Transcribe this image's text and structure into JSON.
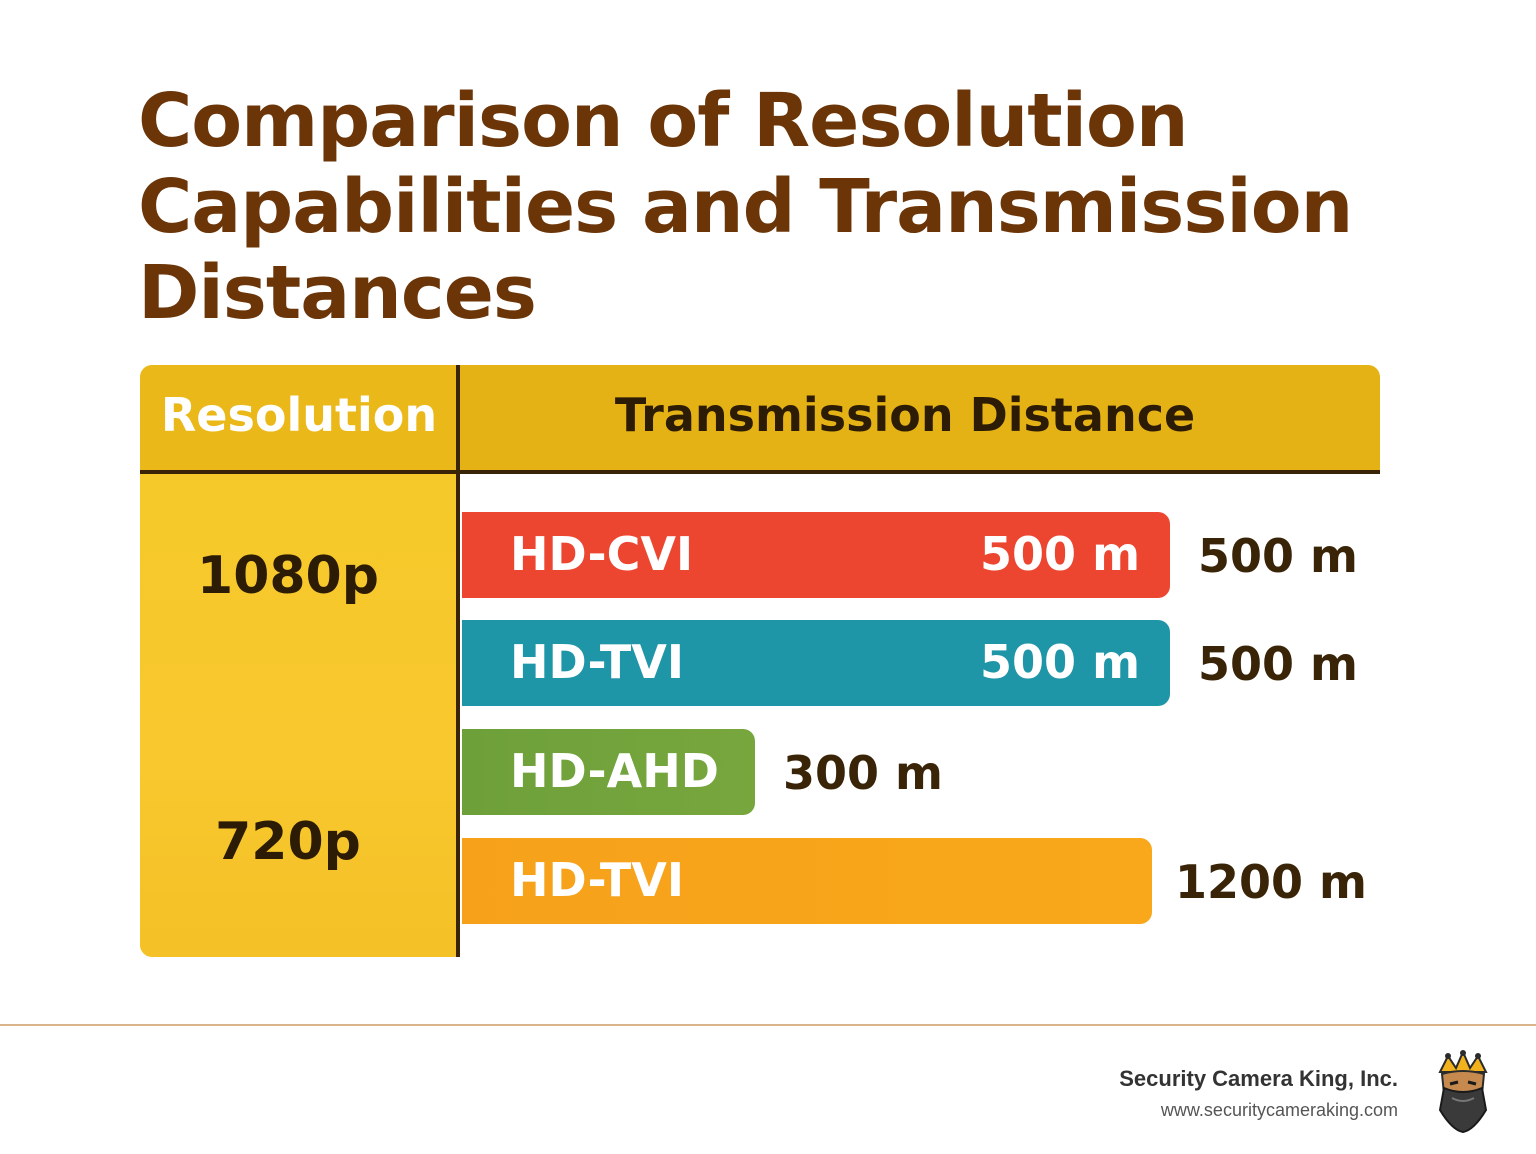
{
  "title_lines": [
    "Comparison of Resolution",
    "Capabilities and Transmission",
    "Distances"
  ],
  "table": {
    "col_resolution": "Resolution",
    "col_distance": "Transmission Distance"
  },
  "chart_data": {
    "type": "bar",
    "orientation": "horizontal",
    "title": "Comparison of Resolution Capabilities and Transmission Distances",
    "unit": "m",
    "groups": [
      {
        "resolution": "1080p",
        "bars": [
          {
            "name": "HD-CVI",
            "value": 500,
            "inner_label": "500 m",
            "outer_label": "500 m",
            "color": "#ec4630"
          },
          {
            "name": "HD-TVI",
            "value": 500,
            "inner_label": "500 m",
            "outer_label": "500 m",
            "color": "#1f95a8"
          }
        ]
      },
      {
        "resolution": "720p",
        "bars": [
          {
            "name": "HD-AHD",
            "value": 300,
            "inner_label": "",
            "outer_label": "300 m",
            "color": "#6ea03a"
          },
          {
            "name": "HD-TVI",
            "value": 1200,
            "inner_label": "",
            "outer_label": "1200 m",
            "color": "#f7a218"
          }
        ]
      }
    ]
  },
  "footer": {
    "company": "Security Camera King, Inc.",
    "url": "www.securitycameraking.com",
    "logo_icon": "king-mascot-icon"
  }
}
